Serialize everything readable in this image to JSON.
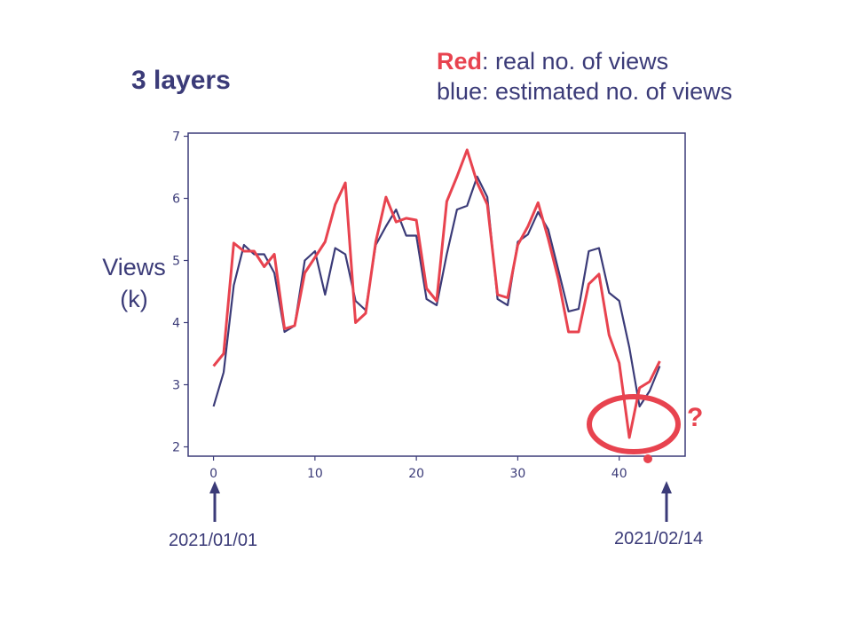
{
  "slide": {
    "title": "3 layers",
    "legend": {
      "red_word": "Red",
      "red_rest": ": real no. of views",
      "blue_line": "blue:  estimated no. of views"
    },
    "ylabel_line1": "Views",
    "ylabel_line2": "(k)",
    "date_start": "2021/01/01",
    "date_end": "2021/02/14",
    "question_mark": "?"
  },
  "colors": {
    "real": "#e8434f",
    "estimated": "#3b3b78",
    "text": "#3b3b78",
    "highlight": "#e8434f"
  },
  "chart_data": {
    "type": "line",
    "x": [
      0,
      1,
      2,
      3,
      4,
      5,
      6,
      7,
      8,
      9,
      10,
      11,
      12,
      13,
      14,
      15,
      16,
      17,
      18,
      19,
      20,
      21,
      22,
      23,
      24,
      25,
      26,
      27,
      28,
      29,
      30,
      31,
      32,
      33,
      34,
      35,
      36,
      37,
      38,
      39,
      40,
      41,
      42,
      43,
      44
    ],
    "series": [
      {
        "name": "Red",
        "color": "#e8434f",
        "values": [
          3.3,
          3.5,
          5.28,
          5.15,
          5.15,
          4.9,
          5.1,
          3.9,
          3.95,
          4.8,
          5.05,
          5.3,
          5.9,
          6.25,
          4.0,
          4.15,
          5.3,
          6.02,
          5.62,
          5.68,
          5.65,
          4.55,
          4.35,
          5.95,
          6.35,
          6.78,
          6.25,
          5.9,
          4.45,
          4.4,
          5.25,
          5.55,
          5.93,
          5.35,
          4.7,
          3.85,
          3.85,
          4.62,
          4.78,
          3.8,
          3.35,
          2.15,
          2.95,
          3.05,
          3.38
        ]
      },
      {
        "name": "blue",
        "color": "#3b3b78",
        "values": [
          2.65,
          3.2,
          4.6,
          5.25,
          5.1,
          5.1,
          4.8,
          3.85,
          3.95,
          5.0,
          5.15,
          4.45,
          5.2,
          5.1,
          4.35,
          4.2,
          5.25,
          5.55,
          5.82,
          5.4,
          5.4,
          4.38,
          4.28,
          5.1,
          5.82,
          5.88,
          6.35,
          6.02,
          4.38,
          4.28,
          5.3,
          5.42,
          5.78,
          5.5,
          4.85,
          4.18,
          4.22,
          5.15,
          5.2,
          4.48,
          4.35,
          3.6,
          2.65,
          2.9,
          3.3
        ]
      }
    ],
    "xticks": [
      0,
      10,
      20,
      30,
      40
    ],
    "yticks": [
      2,
      3,
      4,
      5,
      6,
      7
    ],
    "xlim": [
      -2.5,
      46.5
    ],
    "ylim": [
      1.85,
      7.05
    ],
    "grid": false,
    "annotations": [
      "2021/01/01",
      "2021/02/14",
      "?"
    ]
  }
}
